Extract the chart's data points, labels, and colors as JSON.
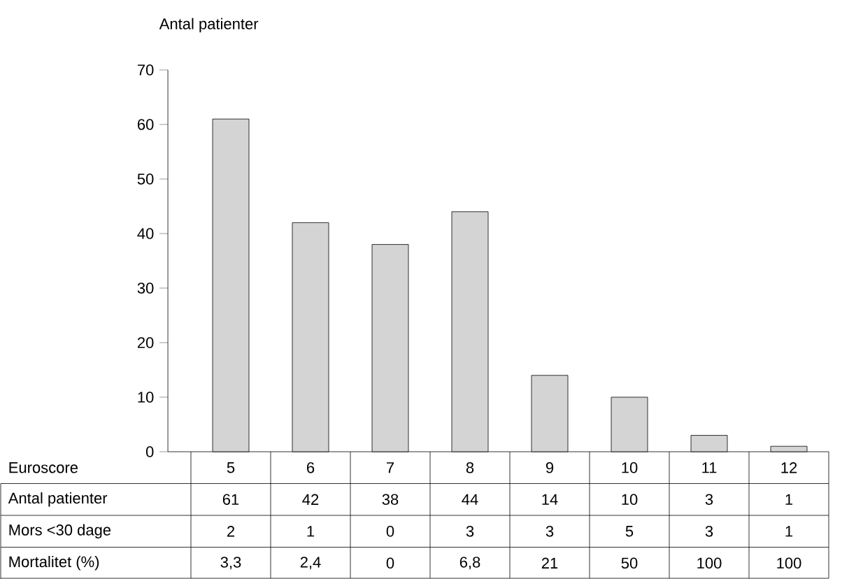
{
  "chart_data": {
    "type": "bar",
    "xlabel": "Euroscore",
    "ylabel": "Antal patienter",
    "categories": [
      "5",
      "6",
      "7",
      "8",
      "9",
      "10",
      "11",
      "12"
    ],
    "values": [
      61,
      42,
      38,
      44,
      14,
      10,
      3,
      1
    ],
    "color": "#d4d4d4",
    "ylim": [
      0,
      70
    ],
    "yticks": [
      0,
      10,
      20,
      30,
      40,
      50,
      60,
      70
    ],
    "data_labels": true,
    "annotations": [
      "Antal patienter",
      "Mors <30 dage",
      "2",
      "1",
      "0",
      "3",
      "3",
      "5",
      "3",
      "1",
      "Mortalitet (%)",
      "3,3",
      "2,4",
      "0",
      "6,8",
      "21",
      "50",
      "100",
      "100"
    ]
  }
}
